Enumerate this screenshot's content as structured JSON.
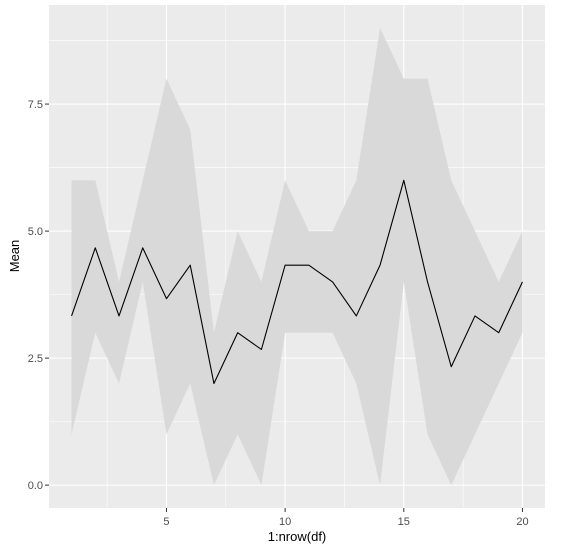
{
  "chart_data": {
    "type": "line",
    "title": "",
    "xlabel": "1:nrow(df)",
    "ylabel": "Mean",
    "xlim": [
      0.05,
      20.95
    ],
    "ylim": [
      -0.45,
      9.45
    ],
    "x_ticks": [
      5,
      10,
      15,
      20
    ],
    "x_tick_labels": [
      "5",
      "10",
      "15",
      "20"
    ],
    "y_ticks": [
      0,
      2.5,
      5,
      7.5
    ],
    "y_tick_labels": [
      "0.0",
      "2.5",
      "5.0",
      "7.5"
    ],
    "grid": true,
    "legend": "none",
    "x": [
      1,
      2,
      3,
      4,
      5,
      6,
      7,
      8,
      9,
      10,
      11,
      12,
      13,
      14,
      15,
      16,
      17,
      18,
      19,
      20
    ],
    "series": [
      {
        "type": "line",
        "values": [
          3.33,
          4.67,
          3.33,
          4.67,
          3.67,
          4.33,
          2.0,
          3.0,
          2.67,
          4.33,
          4.33,
          4.0,
          3.33,
          4.33,
          6.0,
          4.0,
          2.33,
          3.33,
          3.0,
          4.0
        ]
      },
      {
        "type": "ribbon",
        "lower": [
          1,
          3,
          2,
          4,
          1,
          2,
          0,
          1,
          0,
          3,
          3,
          3,
          2,
          0,
          4,
          1,
          0,
          1,
          2,
          3
        ],
        "upper": [
          6,
          6,
          4,
          6,
          8,
          7,
          3,
          5,
          4,
          6,
          5,
          5,
          6,
          9,
          8,
          8,
          6,
          5,
          4,
          5
        ]
      }
    ],
    "colors": {
      "panel_background": "#ebebeb",
      "grid_major": "#ffffff",
      "ribbon_fill": "#d9d9d9",
      "line": "#000000",
      "tick_text": "#4d4d4d",
      "tick_mark": "#333333",
      "title_text": "#000000"
    }
  }
}
